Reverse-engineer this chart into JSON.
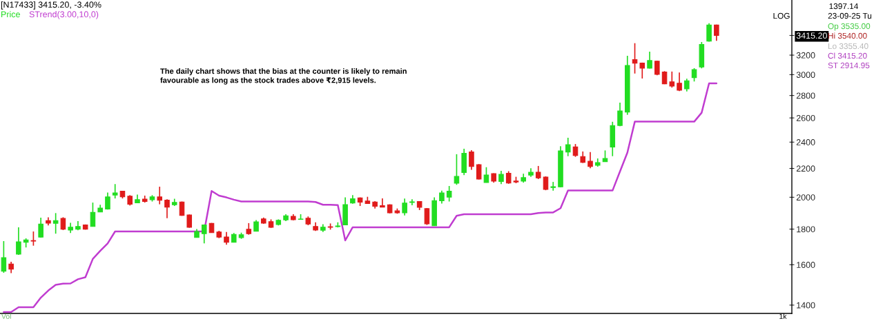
{
  "chart_data": {
    "type": "candlestick",
    "title": "[N17433] 3415.20, -3.40%",
    "categories": [
      null,
      null,
      null,
      null,
      null,
      null,
      null,
      null,
      null,
      null,
      null,
      null,
      null,
      null,
      null,
      null,
      null,
      null,
      null,
      null,
      null,
      null,
      null,
      null,
      null,
      null,
      null,
      null,
      null,
      null,
      null,
      null,
      null,
      null,
      null,
      null,
      null,
      null,
      null,
      null,
      null,
      null,
      null,
      null,
      null,
      null,
      null,
      null,
      null,
      null,
      null,
      null,
      null,
      null,
      null,
      null,
      null,
      null,
      null,
      null,
      null,
      null,
      null,
      null,
      null,
      null,
      null,
      null,
      null,
      null,
      null,
      null,
      null,
      null,
      null,
      null,
      null,
      null,
      null,
      null,
      null,
      null,
      null,
      null,
      null,
      null,
      null,
      null,
      null,
      null,
      null,
      null,
      null,
      null,
      null,
      null,
      null
    ],
    "series": [
      {
        "name": "Price",
        "color": "#22dd22",
        "colors": [
          "#22dd22",
          "#e01b1b",
          "#22dd22",
          "#22dd22",
          "#e01b1b",
          "#22dd22",
          "#e01b1b",
          "#22dd22",
          "#e01b1b",
          "#22dd22",
          "#22dd22",
          "#e01b1b",
          "#22dd22",
          "#22dd22",
          "#22dd22",
          "#22dd22",
          "#e01b1b",
          "#e01b1b",
          "#22dd22",
          "#e01b1b",
          "#22dd22",
          "#e01b1b",
          "#e01b1b",
          "#22dd22",
          "#e01b1b",
          "#e01b1b",
          "#22dd22",
          "#22dd22",
          "#e01b1b",
          "#e01b1b",
          "#e01b1b",
          "#22dd22",
          "#22dd22",
          "#e01b1b",
          "#22dd22",
          "#e01b1b",
          "#e01b1b",
          "#22dd22",
          "#22dd22",
          "#e01b1b",
          "#22dd22",
          "#e01b1b",
          "#e01b1b",
          "#22dd22",
          "#e01b1b",
          "#22dd22",
          "#22dd22",
          "#22dd22",
          "#e01b1b",
          "#e01b1b",
          "#e01b1b",
          "#e01b1b",
          "#e01b1b",
          "#e01b1b",
          "#22dd22",
          "#22dd22",
          "#e01b1b",
          "#e01b1b",
          "#22dd22",
          "#22dd22",
          "#22dd22",
          "#22dd22",
          "#22dd22",
          "#e01b1b",
          "#e01b1b",
          "#22dd22",
          "#e01b1b",
          "#22dd22",
          "#e01b1b",
          "#e01b1b",
          "#22dd22",
          "#22dd22",
          "#e01b1b",
          "#e01b1b",
          "#22dd22",
          "#22dd22",
          "#22dd22",
          "#e01b1b",
          "#e01b1b",
          "#e01b1b",
          "#22dd22",
          "#22dd22",
          "#22dd22",
          "#22dd22",
          "#22dd22",
          "#e01b1b",
          "#e01b1b",
          "#22dd22",
          "#e01b1b",
          "#e01b1b",
          "#e01b1b",
          "#e01b1b",
          "#22dd22",
          "#22dd22",
          "#22dd22",
          "#22dd22",
          "#e01b1b"
        ],
        "ohlc": [
          [
            1566,
            1730,
            1558,
            1638
          ],
          [
            1604,
            1616,
            1556,
            1577
          ],
          [
            1657,
            1811,
            1653,
            1726
          ],
          [
            1723,
            1746,
            1694,
            1737
          ],
          [
            1733,
            1786,
            1704,
            1730
          ],
          [
            1753,
            1869,
            1750,
            1830
          ],
          [
            1851,
            1872,
            1822,
            1836
          ],
          [
            1835,
            1898,
            1773,
            1851
          ],
          [
            1865,
            1872,
            1794,
            1800
          ],
          [
            1794,
            1838,
            1777,
            1811
          ],
          [
            1800,
            1848,
            1793,
            1816
          ],
          [
            1825,
            1828,
            1797,
            1800
          ],
          [
            1816,
            1965,
            1815,
            1902
          ],
          [
            1905,
            1951,
            1904,
            1930
          ],
          [
            1924,
            2032,
            1920,
            2002
          ],
          [
            2015,
            2089,
            1992,
            2029
          ],
          [
            2040,
            2041,
            1992,
            2003
          ],
          [
            2007,
            2014,
            1946,
            1954
          ],
          [
            1963,
            2018,
            1962,
            1984
          ],
          [
            1988,
            2011,
            1965,
            1972
          ],
          [
            1984,
            2014,
            1972,
            2003
          ],
          [
            2002,
            2071,
            1954,
            1980
          ],
          [
            1981,
            1987,
            1866,
            1936
          ],
          [
            1951,
            1990,
            1943,
            1966
          ],
          [
            1969,
            1972,
            1881,
            1883
          ],
          [
            1886,
            1889,
            1808,
            1811
          ],
          [
            1751,
            1800,
            1750,
            1786
          ],
          [
            1773,
            1828,
            1717,
            1825
          ],
          [
            1834,
            1837,
            1778,
            1779
          ],
          [
            1783,
            1790,
            1747,
            1753
          ],
          [
            1754,
            1783,
            1709,
            1723
          ],
          [
            1723,
            1777,
            1722,
            1769
          ],
          [
            1750,
            1779,
            1743,
            1767
          ],
          [
            1799,
            1836,
            1767,
            1773
          ],
          [
            1787,
            1855,
            1786,
            1844
          ],
          [
            1862,
            1870,
            1832,
            1836
          ],
          [
            1845,
            1859,
            1807,
            1811
          ],
          [
            1828,
            1859,
            1822,
            1853
          ],
          [
            1856,
            1891,
            1848,
            1881
          ],
          [
            1878,
            1891,
            1853,
            1857
          ],
          [
            1859,
            1891,
            1858,
            1861
          ],
          [
            1866,
            1877,
            1823,
            1831
          ],
          [
            1816,
            1841,
            1789,
            1795
          ],
          [
            1793,
            1829,
            1783,
            1812
          ],
          [
            1814,
            1834,
            1797,
            1811
          ],
          [
            1815,
            1841,
            1810,
            1819
          ],
          [
            1825,
            1999,
            1824,
            1952
          ],
          [
            1962,
            2014,
            1958,
            1990
          ],
          [
            1996,
            1999,
            1943,
            1968
          ],
          [
            1975,
            2003,
            1958,
            1959
          ],
          [
            1969,
            1974,
            1927,
            1941
          ],
          [
            1945,
            1993,
            1935,
            1936
          ],
          [
            1951,
            1954,
            1896,
            1900
          ],
          [
            1912,
            1927,
            1894,
            1900
          ],
          [
            1900,
            1991,
            1883,
            1962
          ],
          [
            1966,
            1987,
            1948,
            1970
          ],
          [
            1972,
            1974,
            1917,
            1935
          ],
          [
            1926,
            1930,
            1825,
            1832
          ],
          [
            1820,
            1999,
            1819,
            1978
          ],
          [
            1977,
            2044,
            1959,
            2029
          ],
          [
            2001,
            2076,
            1972,
            2040
          ],
          [
            2095,
            2306,
            2084,
            2143
          ],
          [
            2170,
            2348,
            2152,
            2313
          ],
          [
            2323,
            2337,
            2190,
            2214
          ],
          [
            2227,
            2232,
            2121,
            2124
          ],
          [
            2100,
            2209,
            2099,
            2153
          ],
          [
            2162,
            2165,
            2099,
            2110
          ],
          [
            2107,
            2182,
            2089,
            2157
          ],
          [
            2165,
            2180,
            2091,
            2096
          ],
          [
            2110,
            2140,
            2095,
            2104
          ],
          [
            2110,
            2162,
            2099,
            2134
          ],
          [
            2152,
            2201,
            2140,
            2172
          ],
          [
            2173,
            2218,
            2124,
            2132
          ],
          [
            2138,
            2143,
            2047,
            2053
          ],
          [
            2065,
            2104,
            2044,
            2071
          ],
          [
            2070,
            2368,
            2067,
            2332
          ],
          [
            2323,
            2435,
            2291,
            2380
          ],
          [
            2362,
            2385,
            2286,
            2297
          ],
          [
            2288,
            2327,
            2240,
            2245
          ],
          [
            2253,
            2322,
            2201,
            2214
          ],
          [
            2223,
            2274,
            2213,
            2243
          ],
          [
            2250,
            2335,
            2248,
            2274
          ],
          [
            2362,
            2567,
            2291,
            2535
          ],
          [
            2536,
            2735,
            2529,
            2661
          ],
          [
            2651,
            3193,
            2627,
            3093
          ],
          [
            3153,
            3329,
            3011,
            3117
          ],
          [
            3117,
            3122,
            2962,
            3065
          ],
          [
            3065,
            3237,
            3061,
            3143
          ],
          [
            3136,
            3141,
            2994,
            3003
          ],
          [
            3026,
            3035,
            2907,
            2911
          ],
          [
            2929,
            3031,
            2874,
            2889
          ],
          [
            2916,
            3021,
            2841,
            2849
          ],
          [
            2862,
            2960,
            2838,
            2940
          ],
          [
            2971,
            3065,
            2933,
            3051
          ],
          [
            3077,
            3342,
            3063,
            3315
          ],
          [
            3352,
            3555,
            3345,
            3535
          ],
          [
            3535,
            3540,
            3355.4,
            3415.2
          ]
        ]
      },
      {
        "name": "STrend(3.00,10,0)",
        "type": "line",
        "color": "#c03cd0",
        "values": [
          1368,
          1368,
          1390,
          1390,
          1390,
          1435,
          1469,
          1497,
          1503,
          1504,
          1525,
          1535,
          1631,
          1675,
          1717,
          1786,
          1786,
          1786,
          1786,
          1786,
          1786,
          1786,
          1786,
          1786,
          1786,
          1786,
          1786,
          1786,
          2042,
          2011,
          1999,
          1984,
          1972,
          1972,
          1972,
          1972,
          1972,
          1972,
          1972,
          1972,
          1972,
          1972,
          1969,
          1951,
          1951,
          1949,
          1734,
          1811,
          1811,
          1811,
          1811,
          1811,
          1811,
          1811,
          1811,
          1811,
          1811,
          1811,
          1811,
          1811,
          1811,
          1881,
          1891,
          1891,
          1891,
          1891,
          1891,
          1891,
          1891,
          1891,
          1891,
          1891,
          1898,
          1902,
          1902,
          1929,
          2045,
          2045,
          2045,
          2045,
          2045,
          2045,
          2045,
          2178,
          2318,
          2568,
          2568,
          2568,
          2568,
          2568,
          2568,
          2568,
          2568,
          2568,
          2645,
          2915,
          2915
        ]
      }
    ],
    "log": true,
    "ylim": [
      1362,
      3840
    ],
    "yticks": [
      1400,
      1600,
      1800,
      2000,
      2200,
      2400,
      2600,
      2800,
      3000,
      3200,
      {
        "value": 3415.2,
        "label": "3415.20"
      }
    ],
    "legend": "top left",
    "annotations": [
      "The daily chart shows that the bias at the counter is likely to remain\nfavourable as long as the stock trades above ₹2,915 levels.",
      "LOG",
      "1397.14",
      "23-09-25 Tu",
      "Op 3535.00",
      "Hi 3540.00",
      "Lo 3355.40",
      "Cl 3415.20",
      "ST 2914.95",
      "Vol",
      "1k"
    ]
  }
}
